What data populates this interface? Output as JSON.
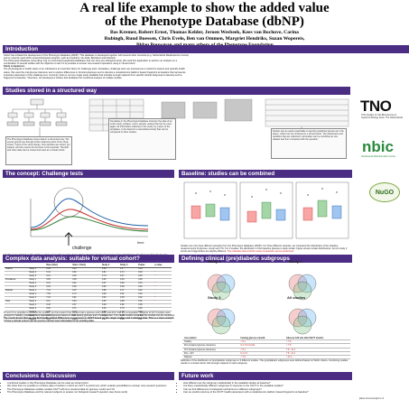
{
  "title": {
    "line1": "A real life example to show the added value",
    "line2": "of the Phenotype Database (dbNP)"
  },
  "authors": {
    "line1": "Bas Kremer, Robert Ernst, Thomas Kelder, Jeroen Wesbeek, Kees van Bochove, Carina",
    "line2": "Rubingh, Ruud Boessen, Chris Evelo, Ben van Ommen, Margriet Hendriks, Suzan Wopereis,",
    "line3": "Jildau Bouwman and many others of the Phenotype Foundation"
  },
  "sections": {
    "introduction": "Introduction",
    "studies_stored": "Studies stored in a structured way",
    "challenge_tests": "The concept: Challenge tests",
    "baseline": "Baseline: studies can be combined",
    "complex_data": "Complex data analysis: suitable for virtual cohort?",
    "subgroups": "Defining clinical (pre)diabetic subgroups",
    "conclusions": "Conclusions & Discussion",
    "future_work": "Future work"
  },
  "intro_text": [
    "NuGO has initiated the development of the Phenotype Database (dbNP). This database is developed together with several other consortia (e.g. Netherlands Metabolomics Centre)",
    "and is currently used within several European projects, such as Food4me, Nu-AGE, Bioclaims and Nutritech.",
    "The Phenotype Database (www.dbnp.org) is a web-based application/database that can store any biological study. We used this application to perform an analysis on a",
    "combination of several studies with the objective to test if it is possible to answer new research questions using a 'virtual cohort'.",
    "Study comparison:",
    "The physiological or health status of an individual is an important factor for challenge tests. Nowadays, challenge tests are proposed as a method to assess and quantify health",
    "status. We used the oral glucose tolerance test to explore differences in clinical subgroups and to develop a metabolomics platform based fingerprint at baseline that represents",
    "important parameters of the challenge test. Currently, there is not one single study available that includes enough subjects from specific clinical subgroups to develop such a",
    "fingerprint at baseline. Therefore, we developed a toolbox that facilitates the combined analysis of multiple studies."
  ],
  "studies_boxes": {
    "left": "The Phenotype Database stores data in a structured way. The events groups are through all the treatment parts of the study stored. Types of the study design, how samples are stored, per subject, and the events can be done in time periods. The lipid and other data can be stored and used as a virtual cohort.",
    "middle": "Templates in the Phenotype Database structure the data of an entire study, (subject, event, sample, assay) that can be used again. All information collected in the study, by means of the templates, is the basis for a well-defined study that can be compared to other studies.",
    "right": "Studies can be easily searchable to specify predefined groups as in the above, which can be combined in a virtual cohort. The parameters and variables that are collected in all studies can be combined as one dataset and then compared with the question."
  },
  "challenge": {
    "label": "challenge",
    "time_label": "time",
    "caption": "Health can be defined as 'the ability to adapt' and resilience is the basis of how physical, biochemical and emotional challenges should be handled. To develop measurements for the ability to adapt, challenge tests are used. In the presented studies, we used 3 oral glucose tolerance tests at different time points to measure the response of metabolism. The studies provide a fingerprint of the ability to adapt at baseline."
  },
  "baseline": {
    "caption": "Studies can only have different samples from the Phenotype Database (dbNP). For three different samples, we compared the distribution of the baseline measurements of glucose, insulin and TG. For 3 studies, the distribution of the baseline glucose is quite similar. Figure shows similar distributions, but for study 2 insulin and triglycerides are slightly different.",
    "highlight": "This indicates that a further study comparison can be performed."
  },
  "stats_table": {
    "headers": [
      "",
      "",
      "Base (Gluc)",
      "Value 1 Study",
      "Study 2",
      "Study 3",
      "Pvalue",
      "p-value"
    ],
    "rows": [
      [
        "Healthy",
        "Study 1",
        "5.08",
        "0.44",
        "0.86",
        "1.9",
        "0.08",
        ""
      ],
      [
        "",
        "Study 2",
        "5.41",
        "0.52",
        "0.81",
        "0.73",
        "0.03",
        "*"
      ],
      [
        "",
        "Study 3",
        "5.14",
        "0.65",
        "0.79",
        "0.67",
        "0.05",
        "*"
      ],
      [
        "Prediabetic",
        "Study 1",
        "5.95",
        "0.58",
        "0.95",
        "0.84",
        "0.08",
        ""
      ],
      [
        "",
        "Study 2",
        "6.21",
        "0.61",
        "0.97",
        "0.86",
        "0.04",
        "*"
      ],
      [
        "",
        "Study 3",
        "6.04",
        "0.66",
        "0.96",
        "0.28",
        "0.02",
        "*"
      ],
      [
        "Diabetic",
        "Study 1",
        "7.31",
        "0.07",
        "0.88",
        "0.71",
        "0.01",
        "*"
      ],
      [
        "",
        "Study 2",
        "7.55",
        "0.74",
        "0.99",
        "0.91",
        "0.05",
        "*"
      ],
      [
        "",
        "Study 3",
        "7.23",
        "0.81",
        "0.84",
        "0.58",
        "0.02",
        "*"
      ],
      [
        "Total",
        "Study 1",
        "6.11",
        "0.64",
        "0.95",
        "0.88",
        "0.01",
        "*"
      ],
      [
        "",
        "Study 2",
        "6.42",
        "0.57",
        "0.98",
        "0.82",
        "0.08",
        ""
      ],
      [
        "",
        "Study 3",
        "6.18",
        "0.71",
        "0.93",
        "0.76",
        "0.06",
        ""
      ],
      [
        "",
        "Study 4",
        "6.05",
        "0.73",
        "0.99",
        "1.04",
        "0.02",
        "*"
      ],
      [
        "",
        "Study 5",
        "6.28",
        "0.61",
        "0.92",
        "1.05",
        "0.04",
        "*"
      ],
      [
        "",
        "Study 6",
        "6.37",
        "0.69",
        "0.91",
        "0.88",
        "0.01",
        "*"
      ]
    ],
    "caption": "To test if it is possible to combine the studies, we first tested if the studies had a glucose and insulin and AUC that are comparable. Subjects of the 3 studies were grouped in healthy, prediabetic and diabetic subgroups based on their fasting glucose and 2 hour glucose. The mixed models show that the studies can be combined.",
    "highlight": "The result shows that we can find health related differences in response to OGTT based on the single studies and combined data. This is a clear example of how a virtual cohort can be used to extract new information from existing data."
  },
  "subgroups": {
    "study_labels": [
      "Study 1",
      "Study 2",
      "Study 3",
      "All studies"
    ],
    "table_headers": [
      "Association",
      "Fasting glucose mmol/L",
      "Glucose 120 min after OGTT mmol/L"
    ],
    "table_rows": [
      [
        "Healthy",
        "< 6.1",
        "< 7.8"
      ],
      [
        "IFG (impaired glucose tolerance)",
        "6.1-7.0 mmol/L",
        "< 7.8"
      ],
      [
        "IGT (impaired glucose tolerance)",
        "< 6.1",
        "7.8 - 11.1"
      ],
      [
        "IFG + IGT",
        "6.1-7.0",
        "7.8 - 11.1"
      ],
      [
        "Diabetic",
        "> 7.0",
        "> 11.1"
      ]
    ],
    "caption": "Definition of the distribution of (pre)diabetic subgroups in 3 different studies. The (pre)diabetic subgroups were defined based on WHO criteria. Combining studies results in a virtual cohort with enough subjects in each subgroup."
  },
  "conclusions": [
    "Combined studies in the Phenotype Database can be used as virtual cohort",
    "We show that it is possible to combine data of studies in which an OGTT is performed, which enables possibilities to answer new research questions",
    "The Phenotype Database enables studies OGTT with time resolved data for glucose, insulin and TG",
    "The Phenotype Database and the relevant subjects to answer our biological research question (see future work)"
  ],
  "future_work": [
    "How different are the subgroup metabolically in the available studies at baseline?",
    "Are there metabolically different subgroups in response to the OGTT in the available studies?",
    "Can we find differences in biological mechanisms in different subgroups?",
    "Can we predict outcome of the OGTT health parameters with a metabolomics platform based fingerprint at baseline?"
  ],
  "logos": {
    "tno": "TNO",
    "tno_sub": "TNO Quality of Life Biosciences & Systems Biology Zeist, The Netherlands",
    "nbic": "nbic",
    "nbic_sub": "Netherlands Bioinformatics Centre",
    "nugo": "NuGO"
  },
  "contact": "jildau.bouwman@tno.nl",
  "colors": {
    "header_bg": "#4b2e83",
    "highlight": "#d42020",
    "nbic": "#2b8a3e"
  }
}
